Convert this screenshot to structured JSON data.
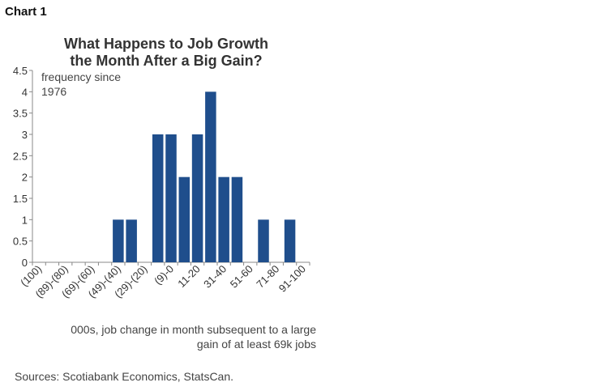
{
  "header": {
    "chart_label": "Chart 1"
  },
  "footer": {
    "source": "Sources: Scotiabank Economics, StatsCan."
  },
  "chart_data": {
    "type": "bar",
    "title_lines": [
      "What Happens to Job Growth",
      "the Month After a Big Gain?"
    ],
    "annotation_lines": [
      "frequency since",
      "1976"
    ],
    "xlabel_lines": [
      "000s, job change in month subsequent to a large",
      "gain of at least 69k jobs"
    ],
    "ylabel": "",
    "ylim": [
      0,
      4.5
    ],
    "yticks": [
      0,
      0.5,
      1,
      1.5,
      2,
      2.5,
      3,
      3.5,
      4,
      4.5
    ],
    "ytick_labels": [
      "0",
      "0.5",
      "1",
      "1.5",
      "2",
      "2.5",
      "3",
      "3.5",
      "4",
      "4.5"
    ],
    "categories": [
      "(100)",
      "(99)-(90)",
      "(89)-(80)",
      "(79)-(70)",
      "(69)-(60)",
      "(59)-(50)",
      "(49)-(40)",
      "(39)-(30)",
      "(29)-(20)",
      "(19)-(10)",
      "(9)-0",
      "1-10",
      "11-20",
      "21-30",
      "31-40",
      "41-50",
      "51-60",
      "61-70",
      "71-80",
      "81-90",
      "91-100"
    ],
    "category_labels_shown": [
      "(100)",
      "(89)-(80)",
      "(69)-(60)",
      "(49)-(40)",
      "(29)-(20)",
      "(9)-0",
      "11-20",
      "31-40",
      "51-60",
      "71-80",
      "91-100"
    ],
    "values": [
      0,
      0,
      0,
      0,
      0,
      0,
      1,
      1,
      0,
      3,
      3,
      2,
      3,
      4,
      2,
      2,
      0,
      1,
      0,
      1,
      0
    ],
    "bar_color": "#1f4e8c",
    "grid": false,
    "legend": "none"
  }
}
